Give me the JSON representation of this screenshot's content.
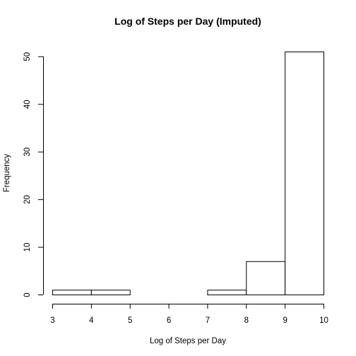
{
  "chart_data": {
    "type": "bar",
    "title": "Log of Steps per Day (Imputed)",
    "xlabel": "Log of Steps per Day",
    "ylabel": "Frequency",
    "bins": [
      {
        "from": 3,
        "to": 4,
        "count": 1
      },
      {
        "from": 4,
        "to": 5,
        "count": 1
      },
      {
        "from": 5,
        "to": 6,
        "count": 0
      },
      {
        "from": 6,
        "to": 7,
        "count": 0
      },
      {
        "from": 7,
        "to": 8,
        "count": 1
      },
      {
        "from": 8,
        "to": 9,
        "count": 7
      },
      {
        "from": 9,
        "to": 10,
        "count": 51
      }
    ],
    "xlim": [
      3,
      10
    ],
    "ylim": [
      0,
      51
    ],
    "x_ticks": [
      "3",
      "4",
      "5",
      "6",
      "7",
      "8",
      "9",
      "10"
    ],
    "y_ticks": [
      "0",
      "10",
      "20",
      "30",
      "40",
      "50"
    ],
    "grid": false,
    "bar_fill": "#ffffff",
    "bar_stroke": "#000000"
  }
}
